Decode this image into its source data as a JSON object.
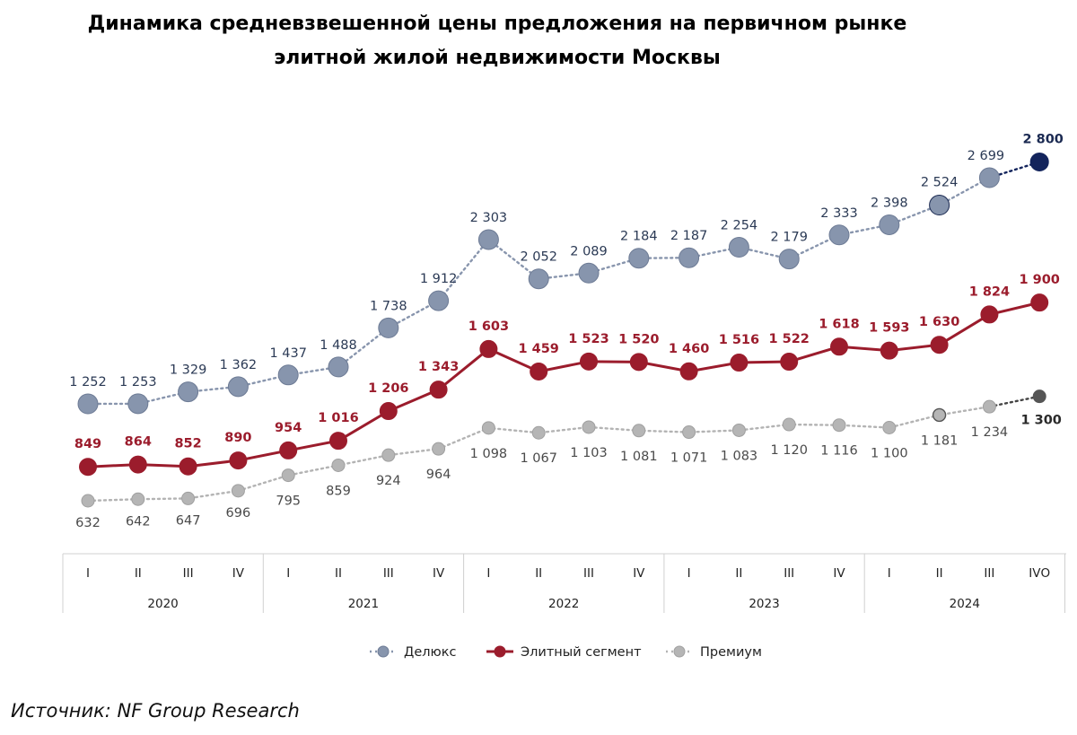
{
  "title_line1": "Динамика средневзвешенной цены предложения на первичном рынке",
  "title_line2": "элитной жилой недвижимости Москвы",
  "source": "Источник: NF Group Research",
  "chart_data": {
    "type": "line",
    "categories": [
      "I",
      "II",
      "III",
      "IV",
      "I",
      "II",
      "III",
      "IV",
      "I",
      "II",
      "III",
      "IV",
      "I",
      "II",
      "III",
      "IV",
      "I",
      "II",
      "III",
      "IVО"
    ],
    "years": [
      "2020",
      "2021",
      "2022",
      "2023",
      "2024"
    ],
    "series": [
      {
        "name": "Делюкс",
        "color": "#8895ad",
        "values": [
          1252,
          1253,
          1329,
          1362,
          1437,
          1488,
          1738,
          1912,
          2303,
          2052,
          2089,
          2184,
          2187,
          2254,
          2179,
          2333,
          2398,
          2524,
          2699,
          2800
        ],
        "labels": [
          "1 252",
          "1 253",
          "1 329",
          "1 362",
          "1 437",
          "1 488",
          "1 738",
          "1 912",
          "2 303",
          "2 052",
          "2 089",
          "2 184",
          "2 187",
          "2 254",
          "2 179",
          "2 333",
          "2 398",
          "2 524",
          "2 699",
          "2 800"
        ]
      },
      {
        "name": "Элитный сегмент",
        "color": "#9b1c2c",
        "values": [
          849,
          864,
          852,
          890,
          954,
          1016,
          1206,
          1343,
          1603,
          1459,
          1523,
          1520,
          1460,
          1516,
          1522,
          1618,
          1593,
          1630,
          1824,
          1900
        ],
        "labels": [
          "849",
          "864",
          "852",
          "890",
          "954",
          "1 016",
          "1 206",
          "1 343",
          "1 603",
          "1 459",
          "1 523",
          "1 520",
          "1 460",
          "1 516",
          "1 522",
          "1 618",
          "1 593",
          "1 630",
          "1 824",
          "1 900"
        ]
      },
      {
        "name": "Премиум",
        "color": "#b3b3b3",
        "values": [
          632,
          642,
          647,
          696,
          795,
          859,
          924,
          964,
          1098,
          1067,
          1103,
          1081,
          1071,
          1083,
          1120,
          1116,
          1100,
          1181,
          1234,
          1300
        ],
        "labels": [
          "632",
          "642",
          "647",
          "696",
          "795",
          "859",
          "924",
          "964",
          "1 098",
          "1 067",
          "1 103",
          "1 081",
          "1 071",
          "1 083",
          "1 120",
          "1 116",
          "1 100",
          "1 181",
          "1 234",
          "1 300"
        ]
      }
    ],
    "legend_position": "bottom",
    "grid": false
  }
}
